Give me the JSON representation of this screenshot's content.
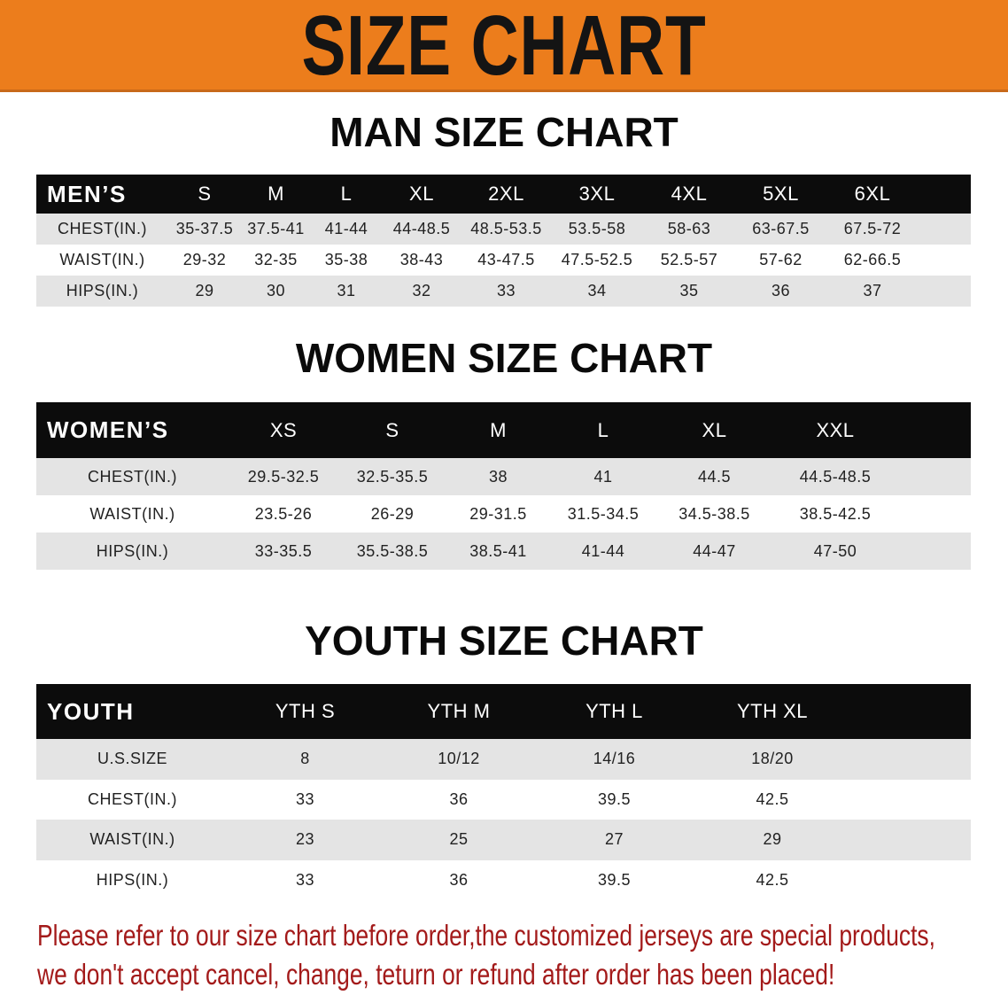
{
  "title": "SIZE CHART",
  "men": {
    "heading": "MAN SIZE CHART",
    "header": [
      "MEN’S",
      "S",
      "M",
      "L",
      "XL",
      "2XL",
      "3XL",
      "4XL",
      "5XL",
      "6XL"
    ],
    "rows": [
      [
        "CHEST(IN.)",
        "35-37.5",
        "37.5-41",
        "41-44",
        "44-48.5",
        "48.5-53.5",
        "53.5-58",
        "58-63",
        "63-67.5",
        "67.5-72"
      ],
      [
        "WAIST(IN.)",
        "29-32",
        "32-35",
        "35-38",
        "38-43",
        "43-47.5",
        "47.5-52.5",
        "52.5-57",
        "57-62",
        "62-66.5"
      ],
      [
        "HIPS(IN.)",
        "29",
        "30",
        "31",
        "32",
        "33",
        "34",
        "35",
        "36",
        "37"
      ]
    ]
  },
  "women": {
    "heading": "WOMEN SIZE CHART",
    "header": [
      "WOMEN’S",
      "XS",
      "S",
      "M",
      "L",
      "XL",
      "XXL"
    ],
    "rows": [
      [
        "CHEST(IN.)",
        "29.5-32.5",
        "32.5-35.5",
        "38",
        "41",
        "44.5",
        "44.5-48.5"
      ],
      [
        "WAIST(IN.)",
        "23.5-26",
        "26-29",
        "29-31.5",
        "31.5-34.5",
        "34.5-38.5",
        "38.5-42.5"
      ],
      [
        "HIPS(IN.)",
        "33-35.5",
        "35.5-38.5",
        "38.5-41",
        "41-44",
        "44-47",
        "47-50"
      ]
    ]
  },
  "youth": {
    "heading": "YOUTH SIZE CHART",
    "header": [
      "YOUTH",
      "YTH S",
      "YTH M",
      "YTH L",
      "YTH XL"
    ],
    "rows": [
      [
        "U.S.SIZE",
        "8",
        "10/12",
        "14/16",
        "18/20"
      ],
      [
        "CHEST(IN.)",
        "33",
        "36",
        "39.5",
        "42.5"
      ],
      [
        "WAIST(IN.)",
        "23",
        "25",
        "27",
        "29"
      ],
      [
        "HIPS(IN.)",
        "33",
        "36",
        "39.5",
        "42.5"
      ]
    ]
  },
  "notice": [
    "Please refer to our size chart before order,the customized jerseys are special products,",
    "we don't accept cancel, change, teturn or refund after order has been placed!"
  ],
  "colors": {
    "banner": "#ec7d1c",
    "header_bg": "#0c0c0c",
    "stripe": "#e4e4e4",
    "notice": "#a31a1a"
  }
}
